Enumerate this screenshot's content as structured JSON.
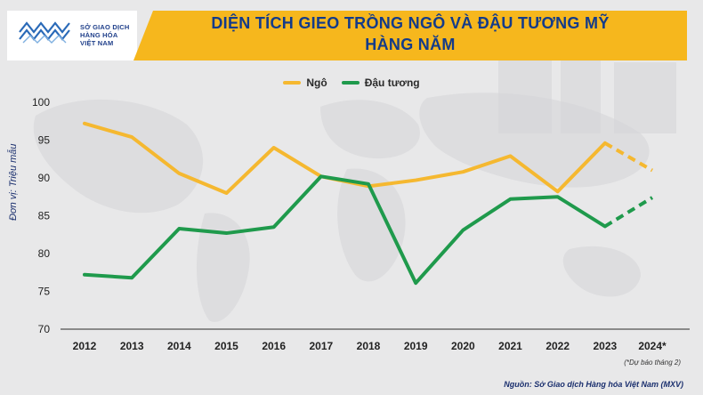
{
  "header": {
    "logo_lines": [
      "SỞ GIAO DỊCH",
      "HÀNG HÓA",
      "VIỆT NAM"
    ],
    "title_line1": "DIỆN TÍCH GIEO TRỒNG NGÔ VÀ ĐẬU TƯƠNG MỸ",
    "title_line2": "HÀNG NĂM"
  },
  "footer": {
    "forecast_note": "(*Dự báo tháng 2)",
    "source_note": "Nguồn: Sở Giao dịch Hàng hóa Việt Nam (MXV)"
  },
  "colors": {
    "corn": "#f5b830",
    "soybean": "#1f9a4c",
    "title_bar": "#f6b71d",
    "title_text": "#133b8a"
  },
  "chart_data": {
    "type": "line",
    "title": "DIỆN TÍCH GIEO TRỒNG NGÔ VÀ ĐẬU TƯƠNG MỸ HÀNG NĂM",
    "ylabel": "Đơn vị: Triệu mẫu",
    "xlabel": "",
    "categories": [
      "2012",
      "2013",
      "2014",
      "2015",
      "2016",
      "2017",
      "2018",
      "2019",
      "2020",
      "2021",
      "2022",
      "2023",
      "2024*"
    ],
    "ylim": [
      70,
      100
    ],
    "yticks": [
      70,
      75,
      80,
      85,
      90,
      95,
      100
    ],
    "grid": false,
    "legend_position": "top-center",
    "forecast_from_index": 11,
    "series": [
      {
        "name": "Ngô",
        "color": "#f5b830",
        "values": [
          97.2,
          95.4,
          90.6,
          88.0,
          94.0,
          90.2,
          88.9,
          89.7,
          90.8,
          92.9,
          88.2,
          94.6,
          91.0
        ]
      },
      {
        "name": "Đậu tương",
        "color": "#1f9a4c",
        "values": [
          77.2,
          76.8,
          83.3,
          82.7,
          83.5,
          90.2,
          89.2,
          76.1,
          83.1,
          87.2,
          87.5,
          83.6,
          87.4
        ]
      }
    ]
  }
}
